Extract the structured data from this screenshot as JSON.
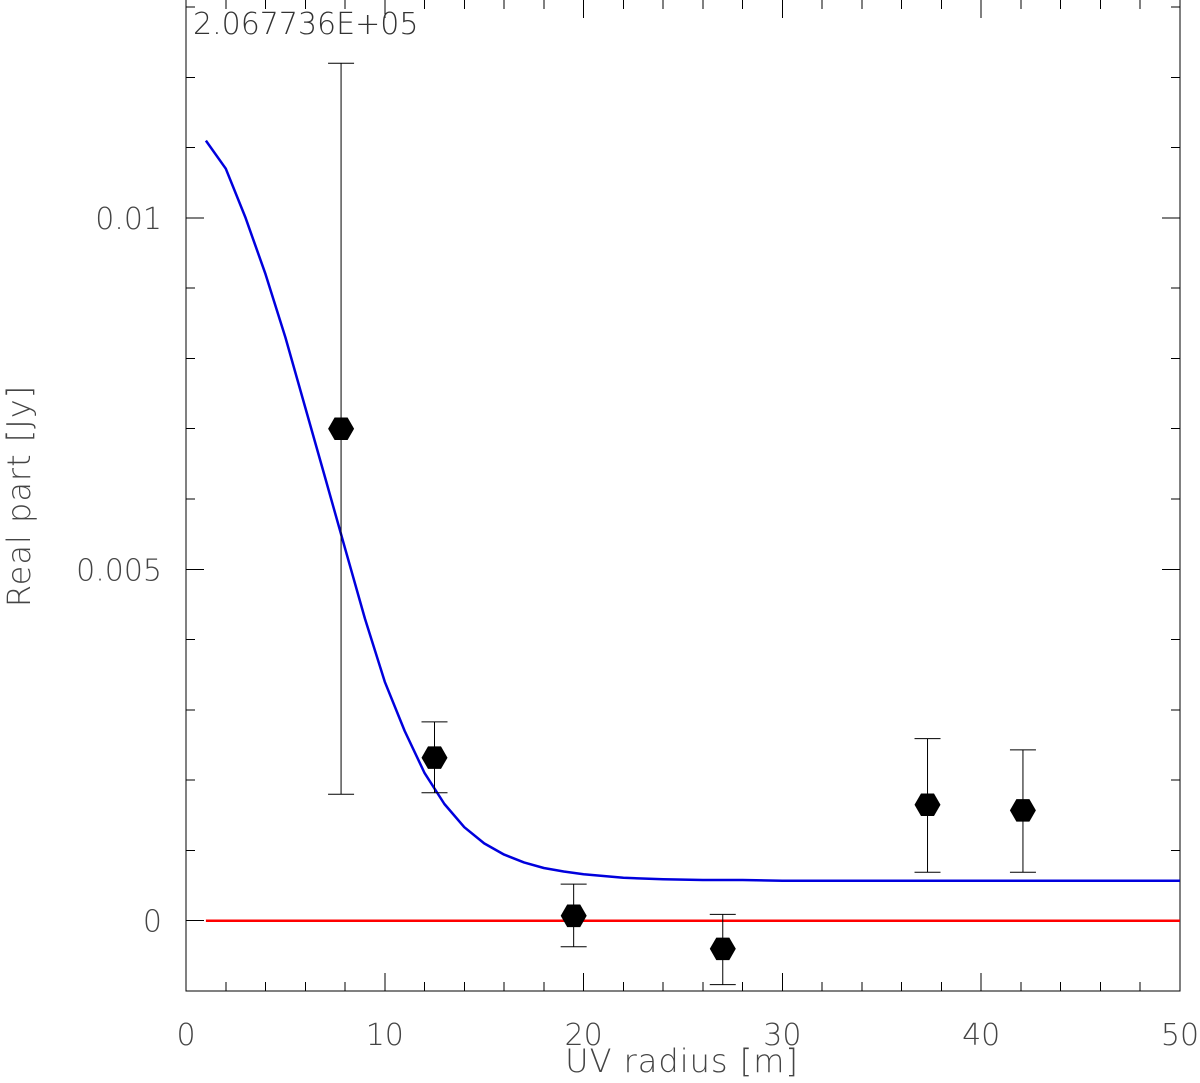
{
  "chart_data": {
    "type": "scatter",
    "title": "",
    "corner_label": "2.067736E+05",
    "xlabel": "UV radius [m]",
    "ylabel": "Real part [Jy]",
    "xlim": [
      0,
      50
    ],
    "ylim": [
      -0.001,
      0.0131
    ],
    "x_ticks": [
      0,
      10,
      20,
      30,
      40,
      50
    ],
    "x_tick_labels": [
      "0",
      "10",
      "20",
      "30",
      "40",
      "50"
    ],
    "y_ticks": [
      0,
      0.005,
      0.01
    ],
    "y_tick_labels": [
      "0",
      "0.005",
      "0.01"
    ],
    "grid": false,
    "series": [
      {
        "kind": "points_with_errorbars",
        "color": "#000000",
        "marker": "hexagon",
        "points": [
          {
            "x": 7.8,
            "y": 0.007,
            "yerr_low": 0.0018,
            "yerr_high": 0.0122
          },
          {
            "x": 12.5,
            "y": 0.00232,
            "yerr_low": 0.00182,
            "yerr_high": 0.00283
          },
          {
            "x": 19.5,
            "y": 7e-05,
            "yerr_low": -0.00037,
            "yerr_high": 0.00052
          },
          {
            "x": 27.0,
            "y": -0.0004,
            "yerr_low": -0.00091,
            "yerr_high": 9e-05
          },
          {
            "x": 37.3,
            "y": 0.00165,
            "yerr_low": 0.00069,
            "yerr_high": 0.00259
          },
          {
            "x": 42.1,
            "y": 0.00157,
            "yerr_low": 0.00069,
            "yerr_high": 0.00243
          }
        ]
      },
      {
        "kind": "line",
        "color": "#0000dd",
        "x": [
          1,
          2,
          3,
          4,
          5,
          6,
          7,
          8,
          9,
          10,
          11,
          12,
          13,
          14,
          15,
          16,
          17,
          18,
          19,
          20,
          22,
          24,
          26,
          28,
          30,
          35,
          40,
          45,
          50
        ],
        "y": [
          0.0111,
          0.0107,
          0.01,
          0.0092,
          0.0083,
          0.0073,
          0.0063,
          0.0053,
          0.0043,
          0.0034,
          0.0027,
          0.0021,
          0.00166,
          0.00133,
          0.0011,
          0.00094,
          0.00083,
          0.00075,
          0.0007,
          0.00066,
          0.00061,
          0.00059,
          0.00058,
          0.00058,
          0.00057,
          0.00057,
          0.00057,
          0.00057,
          0.00057
        ]
      },
      {
        "kind": "line",
        "color": "#ff0000",
        "x": [
          1,
          50
        ],
        "y": [
          0,
          0
        ]
      }
    ]
  }
}
